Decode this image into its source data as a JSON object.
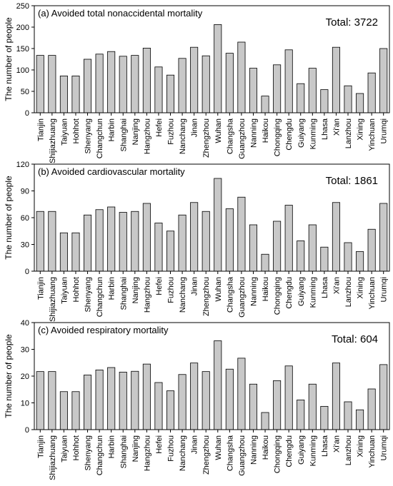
{
  "colors": {
    "bar_fill": "#c8c8c8",
    "bar_stroke": "#000000",
    "axis": "#000000"
  },
  "chart_data": [
    {
      "type": "bar",
      "title": "(a) Avoided total nonaccidental mortality",
      "total_label": "Total: 3722",
      "ylabel": "The number of people",
      "xlabel": "",
      "ylim": [
        0,
        250
      ],
      "yticks": [
        0,
        50,
        100,
        150,
        200,
        250
      ],
      "grid": false,
      "categories": [
        "Tianjin",
        "Shijiazhuang",
        "Taiyuan",
        "Hohhot",
        "Shenyang",
        "Changchun",
        "Harbin",
        "Shanghai",
        "Nanjing",
        "Hangzhou",
        "Hefei",
        "Fuzhou",
        "Nanchang",
        "Jinan",
        "Zhengzhou",
        "Wuhan",
        "Changsha",
        "Guangzhou",
        "Nanning",
        "Haikou",
        "Chongqing",
        "Chengdu",
        "Guiyang",
        "Kunming",
        "Lhasa",
        "Xi'an",
        "Lanzhou",
        "Xining",
        "Yinchuan",
        "Urumqi"
      ],
      "values": [
        134,
        134,
        86,
        86,
        125,
        137,
        143,
        132,
        134,
        151,
        107,
        88,
        127,
        153,
        133,
        206,
        139,
        165,
        104,
        39,
        112,
        147,
        68,
        104,
        54,
        153,
        63,
        45,
        93,
        150
      ]
    },
    {
      "type": "bar",
      "title": "(b) Avoided cardiovascular mortality",
      "total_label": "Total: 1861",
      "ylabel": "The number of people",
      "xlabel": "",
      "ylim": [
        0,
        120
      ],
      "yticks": [
        0,
        30,
        60,
        90,
        120
      ],
      "grid": false,
      "categories": [
        "Tianjin",
        "Shijiazhuang",
        "Taiyuan",
        "Hohhot",
        "Shenyang",
        "Changchun",
        "Harbin",
        "Shanghai",
        "Nanjing",
        "Hangzhou",
        "Hefei",
        "Fuzhou",
        "Nanchang",
        "Jinan",
        "Zhengzhou",
        "Wuhan",
        "Changsha",
        "Guangzhou",
        "Nanning",
        "Haikou",
        "Chongqing",
        "Chengdu",
        "Guiyang",
        "Kunming",
        "Lhasa",
        "Xi'an",
        "Lanzhou",
        "Xining",
        "Yinchuan",
        "Urumqi"
      ],
      "values": [
        67,
        67,
        43,
        43,
        63,
        69,
        72,
        66,
        67,
        76,
        54,
        45,
        63,
        77,
        67,
        104,
        70,
        83,
        52,
        19,
        56,
        74,
        34,
        52,
        27,
        77,
        32,
        22,
        47,
        76
      ]
    },
    {
      "type": "bar",
      "title": "(c) Avoided respiratory mortality",
      "total_label": "Total: 604",
      "ylabel": "The number of people",
      "xlabel": "",
      "ylim": [
        0,
        40
      ],
      "yticks": [
        0,
        10,
        20,
        30,
        40
      ],
      "grid": false,
      "categories": [
        "Tianjin",
        "Shijiazhuang",
        "Taiyuan",
        "Hohhot",
        "Shenyang",
        "Changchun",
        "Harbin",
        "Shanghai",
        "Nanjing",
        "Hangzhou",
        "Hefei",
        "Fuzhou",
        "Nanchang",
        "Jinan",
        "Zhengzhou",
        "Wuhan",
        "Changsha",
        "Guangzhou",
        "Nanning",
        "Haikou",
        "Chongqing",
        "Chengdu",
        "Guiyang",
        "Kunming",
        "Lhasa",
        "Xi'an",
        "Lanzhou",
        "Xining",
        "Yinchuan",
        "Urumqi"
      ],
      "values": [
        21.7,
        21.7,
        14.2,
        14.2,
        20.4,
        22.3,
        23.2,
        21.5,
        21.8,
        24.5,
        17.6,
        14.5,
        20.6,
        24.9,
        21.7,
        33.2,
        22.6,
        26.7,
        17.0,
        6.4,
        18.3,
        23.8,
        11.1,
        17.0,
        8.7,
        24.9,
        10.4,
        7.4,
        15.2,
        24.3
      ]
    }
  ]
}
